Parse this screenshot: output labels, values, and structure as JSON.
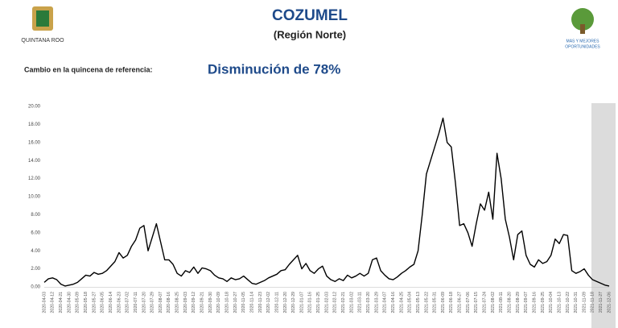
{
  "header": {
    "title": "COZUMEL",
    "subtitle": "(Región Norte)",
    "change_label": "Cambio en la quincena de referencia:",
    "change_value": "Disminución de 78%",
    "left_logo": "QUINTANA ROO",
    "right_logo_line1": "MAS Y MEJORES",
    "right_logo_line2": "OPORTUNIDADES"
  },
  "chart_data": {
    "type": "line",
    "color": "#000000",
    "grid": false,
    "categories": [
      "2020-04-03",
      null,
      "2020-04-12",
      null,
      "2020-04-21",
      null,
      "2020-04-30",
      null,
      "2020-05-09",
      null,
      "2020-05-18",
      null,
      "2020-05-27",
      null,
      "2020-06-05",
      null,
      "2020-06-14",
      null,
      "2020-06-23",
      null,
      "2020-07-02",
      null,
      "2020-07-11",
      null,
      "2020-07-20",
      null,
      "2020-07-29",
      null,
      "2020-08-07",
      null,
      "2020-08-16",
      null,
      "2020-08-25",
      null,
      "2020-09-03",
      null,
      "2020-09-12",
      null,
      "2020-09-21",
      null,
      "2020-09-30",
      null,
      "2020-10-09",
      null,
      "2020-10-18",
      null,
      "2020-10-27",
      null,
      "2020-11-05",
      null,
      "2020-11-14",
      null,
      "2020-11-23",
      null,
      "2020-12-02",
      null,
      "2020-12-11",
      null,
      "2020-12-20",
      null,
      "2020-12-29",
      null,
      "2021-01-07",
      null,
      "2021-01-16",
      null,
      "2021-01-25",
      null,
      "2021-02-03",
      null,
      "2021-02-12",
      null,
      "2021-02-21",
      null,
      "2021-03-02",
      null,
      "2021-03-11",
      null,
      "2021-03-20",
      null,
      "2021-03-29",
      null,
      "2021-04-07",
      null,
      "2021-04-16",
      null,
      "2021-04-25",
      null,
      "2021-05-04",
      null,
      "2021-05-13",
      null,
      "2021-05-22",
      null,
      "2021-05-31",
      null,
      "2021-06-09",
      null,
      "2021-06-18",
      null,
      "2021-06-27",
      null,
      "2021-07-06",
      null,
      "2021-07-15",
      null,
      "2021-07-24",
      null,
      "2021-08-02",
      null,
      "2021-08-11",
      null,
      "2021-08-20",
      null,
      "2021-08-29",
      null,
      "2021-09-07",
      null,
      "2021-09-16",
      null,
      "2021-09-25",
      null,
      "2021-10-04",
      null,
      "2021-10-13",
      null,
      "2021-10-22",
      null,
      "2021-10-31",
      null,
      "2021-11-09",
      null,
      "2021-11-18",
      null,
      "2021-11-27",
      null,
      "2021-12-06"
    ],
    "values": [
      0.5,
      0.9,
      1.0,
      0.8,
      0.3,
      0.1,
      0.2,
      0.3,
      0.5,
      0.9,
      1.3,
      1.2,
      1.6,
      1.4,
      1.5,
      1.8,
      2.3,
      2.8,
      3.8,
      3.2,
      3.5,
      4.5,
      5.2,
      6.5,
      6.8,
      4.0,
      5.5,
      7.0,
      5.0,
      3.0,
      3.0,
      2.5,
      1.5,
      1.2,
      1.8,
      1.6,
      2.2,
      1.5,
      2.1,
      2.0,
      1.8,
      1.3,
      1.0,
      0.9,
      0.6,
      1.0,
      0.8,
      0.9,
      1.2,
      0.8,
      0.4,
      0.3,
      0.5,
      0.7,
      1.0,
      1.2,
      1.4,
      1.8,
      1.9,
      2.5,
      3.0,
      3.5,
      2.0,
      2.6,
      1.8,
      1.5,
      2.0,
      2.3,
      1.2,
      0.8,
      0.6,
      0.9,
      0.7,
      1.3,
      1.0,
      1.2,
      1.5,
      1.2,
      1.5,
      3.0,
      3.2,
      1.8,
      1.3,
      0.9,
      0.8,
      1.1,
      1.5,
      1.8,
      2.2,
      2.5,
      4.0,
      8.0,
      12.5,
      14.0,
      15.5,
      17.0,
      18.7,
      16.0,
      15.5,
      11.5,
      6.8,
      7.0,
      6.0,
      4.5,
      7.0,
      9.2,
      8.5,
      10.5,
      7.5,
      14.8,
      12.0,
      7.5,
      5.5,
      3.0,
      5.8,
      6.2,
      3.5,
      2.5,
      2.2,
      3.0,
      2.6,
      2.8,
      3.5,
      5.3,
      4.8,
      5.8,
      5.7,
      1.8,
      1.5,
      1.7,
      2.0,
      1.3,
      0.8,
      0.6,
      0.4,
      0.2,
      0.1
    ],
    "ylim": [
      0,
      20
    ],
    "yticks": [
      {
        "value": 0,
        "label": "0.00"
      },
      {
        "value": 2,
        "label": "2.00"
      },
      {
        "value": 4,
        "label": "4.00"
      },
      {
        "value": 6,
        "label": "6.00"
      },
      {
        "value": 8,
        "label": "8.00"
      },
      {
        "value": 10,
        "label": "10.00"
      },
      {
        "value": 12,
        "label": "12.00"
      },
      {
        "value": 14,
        "label": "14.00"
      },
      {
        "value": 16,
        "label": "16.00"
      },
      {
        "value": 18,
        "label": "18.00"
      },
      {
        "value": 20,
        "label": "20.00"
      }
    ]
  }
}
